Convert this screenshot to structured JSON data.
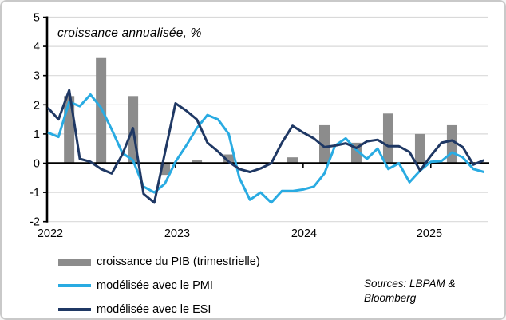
{
  "chart_data": {
    "type": "combo-bar-line",
    "title": "croissance annualisée, %",
    "ylim": [
      -2,
      5
    ],
    "y_ticks": [
      5,
      4,
      3,
      2,
      1,
      0,
      -1,
      -2
    ],
    "x_year_labels": [
      "2022",
      "2023",
      "2024",
      "2025"
    ],
    "grid_on": true,
    "legend_position": "bottom-left",
    "months": [
      "2022-01",
      "2022-02",
      "2022-03",
      "2022-04",
      "2022-05",
      "2022-06",
      "2022-07",
      "2022-08",
      "2022-09",
      "2022-10",
      "2022-11",
      "2022-12",
      "2023-01",
      "2023-02",
      "2023-03",
      "2023-04",
      "2023-05",
      "2023-06",
      "2023-07",
      "2023-08",
      "2023-09",
      "2023-10",
      "2023-11",
      "2023-12",
      "2024-01",
      "2024-02",
      "2024-03",
      "2024-04",
      "2024-05",
      "2024-06",
      "2024-07",
      "2024-08",
      "2024-09",
      "2024-10",
      "2024-11",
      "2024-12",
      "2025-01",
      "2025-02",
      "2025-03",
      "2025-04",
      "2025-05",
      "2025-06"
    ],
    "bar_series": {
      "name": "croissance du PIB (trimestrielle)",
      "color": "#8C8C8C",
      "quarters": [
        "2022 T1",
        "2022 T2",
        "2022 T3",
        "2022 T4",
        "2023 T1",
        "2023 T2",
        "2023 T3",
        "2023 T4",
        "2024 T1",
        "2024 T2",
        "2024 T3",
        "2024 T4",
        "2025 T1"
      ],
      "month_index": [
        2,
        5,
        8,
        11,
        14,
        17,
        20,
        23,
        26,
        29,
        32,
        35,
        38
      ],
      "values": [
        2.3,
        3.6,
        2.3,
        -0.4,
        0.1,
        0.3,
        0.0,
        0.2,
        1.3,
        0.7,
        1.7,
        1.0,
        1.3
      ]
    },
    "line_series": [
      {
        "name": "modélisée avec le PMI",
        "color": "#29ABE2",
        "values": [
          1.05,
          0.9,
          2.1,
          1.95,
          2.35,
          1.9,
          1.15,
          0.35,
          0.1,
          -0.8,
          -1.0,
          -0.7,
          0.05,
          0.6,
          1.2,
          1.65,
          1.5,
          1.0,
          -0.5,
          -1.25,
          -1.0,
          -1.35,
          -0.95,
          -0.95,
          -0.9,
          -0.8,
          -0.35,
          0.6,
          0.85,
          0.45,
          0.15,
          0.5,
          -0.2,
          0.0,
          -0.65,
          -0.25,
          0.05,
          0.07,
          0.37,
          0.2,
          -0.2,
          -0.3
        ]
      },
      {
        "name": "modélisée avec le ESI",
        "color": "#1F3864",
        "values": [
          1.9,
          1.5,
          2.5,
          0.15,
          0.05,
          -0.2,
          -0.35,
          0.3,
          1.2,
          -1.05,
          -1.35,
          0.35,
          2.05,
          1.8,
          1.5,
          0.7,
          0.4,
          0.05,
          -0.2,
          -0.3,
          -0.18,
          0.0,
          0.7,
          1.28,
          1.05,
          0.85,
          0.55,
          0.6,
          0.68,
          0.52,
          0.75,
          0.8,
          0.58,
          0.58,
          0.38,
          -0.25,
          0.25,
          0.7,
          0.78,
          0.55,
          -0.05,
          0.1
        ]
      }
    ],
    "grid_color": "#D9D9D9",
    "axis_color": "#000000"
  },
  "legend": {
    "items": [
      {
        "label": "croissance du PIB (trimestrielle)",
        "swatch": "bar",
        "color": "#8C8C8C"
      },
      {
        "label": "modélisée avec le PMI",
        "swatch": "line",
        "color": "#29ABE2"
      },
      {
        "label": "modélisée avec le ESI",
        "swatch": "line",
        "color": "#1F3864"
      }
    ]
  },
  "source_note": {
    "line1": "Sources: LBPAM &",
    "line2": "Bloomberg"
  }
}
